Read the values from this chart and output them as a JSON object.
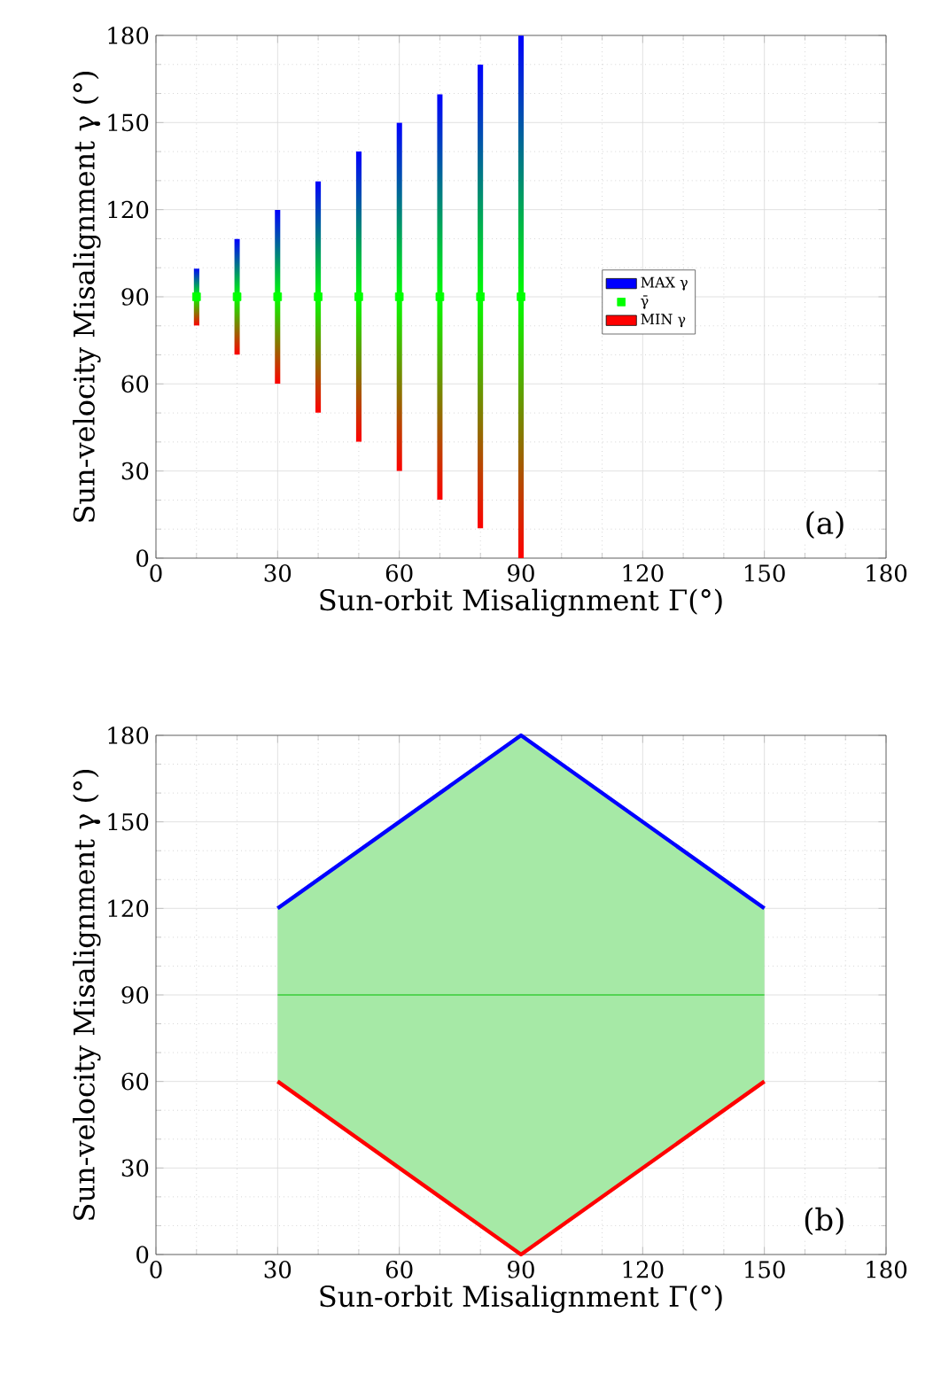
{
  "chart_data": [
    {
      "type": "bar",
      "x": [
        10,
        20,
        30,
        40,
        50,
        60,
        70,
        80,
        90
      ],
      "series": [
        {
          "name": "MIN γ",
          "color": "#ff0000",
          "base": [
            80,
            70,
            60,
            50,
            40,
            30,
            20,
            10,
            0
          ],
          "values": [
            10,
            20,
            30,
            40,
            50,
            60,
            70,
            80,
            90
          ]
        },
        {
          "name": "γ̄",
          "color": "#00ff00",
          "type": "scatter",
          "values": [
            90,
            90,
            90,
            90,
            90,
            90,
            90,
            90,
            90
          ]
        },
        {
          "name": "MAX γ",
          "color": "#0000ff",
          "base": [
            90,
            90,
            90,
            90,
            90,
            90,
            90,
            90,
            90
          ],
          "values": [
            10,
            20,
            30,
            40,
            50,
            60,
            70,
            80,
            90
          ]
        }
      ],
      "xlabel": "Sun-orbit Misalignment Γ(°)",
      "ylabel": "Sun-velocity Misalignment γ (°)",
      "xlim": [
        0,
        180
      ],
      "xticks": [
        0,
        30,
        60,
        90,
        120,
        150,
        180
      ],
      "ylim": [
        0,
        180
      ],
      "yticks": [
        0,
        30,
        60,
        90,
        120,
        150,
        180
      ],
      "grid": true,
      "legend": "right",
      "marker": "square",
      "annotations": [
        "(a)"
      ]
    },
    {
      "type": "line",
      "x": [
        30,
        90,
        150
      ],
      "series": [
        {
          "color": "#ff0000",
          "values": [
            60,
            0,
            60
          ]
        },
        {
          "color": "#00c000",
          "values": [
            90,
            90,
            90
          ],
          "lower": [
            60,
            0,
            60
          ],
          "upper": [
            120,
            180,
            120
          ]
        },
        {
          "color": "#0000ff",
          "values": [
            120,
            180,
            120
          ]
        }
      ],
      "xlabel": "Sun-orbit Misalignment Γ(°)",
      "ylabel": "Sun-velocity Misalignment γ (°)",
      "xlim": [
        0,
        180
      ],
      "xticks": [
        0,
        30,
        60,
        90,
        120,
        150,
        180
      ],
      "ylim": [
        0,
        180
      ],
      "yticks": [
        0,
        30,
        60,
        90,
        120,
        150,
        180
      ],
      "grid": true,
      "annotations": [
        "(b)"
      ]
    }
  ]
}
